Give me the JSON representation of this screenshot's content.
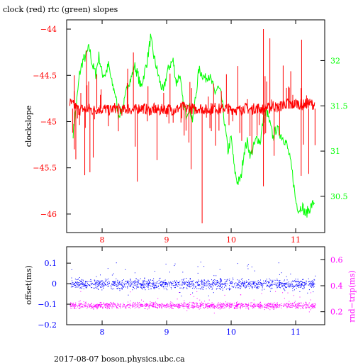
{
  "header": {
    "title": "clock (red) rtc (green) slopes"
  },
  "footer": {
    "text": "2017-08-07  boson.physics.ubc.ca"
  },
  "colors": {
    "red": "#ff0000",
    "green": "#00ff00",
    "blue": "#0000ff",
    "magenta": "#ff00ff",
    "axis": "#000000"
  },
  "chart_data": [
    {
      "type": "line",
      "xlim": [
        7.45,
        11.45
      ],
      "xticks": [
        {
          "v": 8,
          "label": "8"
        },
        {
          "v": 9,
          "label": "9"
        },
        {
          "v": 10,
          "label": "10"
        },
        {
          "v": 11,
          "label": "11"
        }
      ],
      "left_axis": {
        "label": "clockslope",
        "color": "#ff0000",
        "ylim": [
          -46.2,
          -43.9
        ],
        "ticks": [
          {
            "v": -44,
            "label": "−44"
          },
          {
            "v": -44.5,
            "label": "−44.5"
          },
          {
            "v": -45,
            "label": "−45"
          },
          {
            "v": -45.5,
            "label": "−45.5"
          },
          {
            "v": -46,
            "label": "−46"
          }
        ]
      },
      "right_axis": {
        "label": "",
        "color": "#00ff00",
        "ylim": [
          30.1,
          32.45
        ],
        "ticks": [
          {
            "v": 32,
            "label": "32"
          },
          {
            "v": 31.5,
            "label": "31.5"
          },
          {
            "v": 31,
            "label": "31"
          },
          {
            "v": 30.5,
            "label": "30.5"
          }
        ]
      },
      "series": [
        {
          "axis": "right",
          "color": "#00ff00",
          "x": [
            7.55,
            7.6,
            7.65,
            7.7,
            7.75,
            7.8,
            7.85,
            7.9,
            7.95,
            8.0,
            8.05,
            8.1,
            8.15,
            8.2,
            8.25,
            8.3,
            8.35,
            8.4,
            8.45,
            8.5,
            8.55,
            8.6,
            8.65,
            8.7,
            8.75,
            8.8,
            8.85,
            8.9,
            8.95,
            9.0,
            9.05,
            9.1,
            9.15,
            9.2,
            9.25,
            9.3,
            9.35,
            9.4,
            9.45,
            9.5,
            9.55,
            9.6,
            9.65,
            9.7,
            9.75,
            9.8,
            9.85,
            9.9,
            9.95,
            10.0,
            10.05,
            10.1,
            10.15,
            10.2,
            10.25,
            10.3,
            10.35,
            10.4,
            10.45,
            10.5,
            10.55,
            10.6,
            10.65,
            10.7,
            10.75,
            10.8,
            10.85,
            10.9,
            10.95,
            11.0,
            11.05,
            11.1,
            11.15,
            11.2,
            11.25,
            11.3
          ],
          "y": [
            31.2,
            31.5,
            31.85,
            32.0,
            32.05,
            32.15,
            31.95,
            31.85,
            32.05,
            31.85,
            31.85,
            31.95,
            31.75,
            31.65,
            31.4,
            31.45,
            31.55,
            31.75,
            31.8,
            31.95,
            31.85,
            31.7,
            31.85,
            32.0,
            32.25,
            32.05,
            31.9,
            31.75,
            31.65,
            31.85,
            31.95,
            32.0,
            31.75,
            31.85,
            31.55,
            31.4,
            31.5,
            31.35,
            31.6,
            31.9,
            31.85,
            31.8,
            31.85,
            31.75,
            31.65,
            31.7,
            31.6,
            31.3,
            31.0,
            31.15,
            30.8,
            30.65,
            30.7,
            31.0,
            31.1,
            30.95,
            31.05,
            31.15,
            31.1,
            31.35,
            31.45,
            31.3,
            31.15,
            31.25,
            31.2,
            31.15,
            31.1,
            30.95,
            30.75,
            30.45,
            30.35,
            30.4,
            30.3,
            30.35,
            30.4,
            30.45
          ]
        },
        {
          "axis": "left",
          "color": "#ff0000",
          "x": [
            7.5,
            7.55,
            7.6,
            7.65,
            7.7,
            7.75,
            7.8,
            7.85,
            7.9,
            7.95,
            8.0,
            8.05,
            8.1,
            8.15,
            8.2,
            8.25,
            8.3,
            8.35,
            8.4,
            8.45,
            8.5,
            8.55,
            8.6,
            8.65,
            8.7,
            8.75,
            8.8,
            8.85,
            8.9,
            8.95,
            9.0,
            9.05,
            9.1,
            9.15,
            9.2,
            9.25,
            9.3,
            9.35,
            9.4,
            9.45,
            9.5,
            9.55,
            9.6,
            9.65,
            9.7,
            9.75,
            9.8,
            9.85,
            9.9,
            9.95,
            10.0,
            10.05,
            10.1,
            10.15,
            10.2,
            10.25,
            10.3,
            10.35,
            10.4,
            10.45,
            10.5,
            10.55,
            10.6,
            10.65,
            10.7,
            10.75,
            10.8,
            10.85,
            10.9,
            10.95,
            11.0,
            11.05,
            11.1,
            11.15,
            11.2,
            11.25,
            11.3
          ],
          "y": [
            -44.8,
            -44.82,
            -44.85,
            -44.88,
            -44.86,
            -44.87,
            -44.86,
            -44.88,
            -44.87,
            -44.86,
            -44.87,
            -44.86,
            -44.88,
            -44.87,
            -44.85,
            -44.86,
            -44.88,
            -44.87,
            -44.86,
            -44.87,
            -44.88,
            -44.86,
            -44.85,
            -44.86,
            -44.87,
            -44.88,
            -44.86,
            -44.87,
            -44.88,
            -44.86,
            -44.87,
            -44.86,
            -44.88,
            -44.87,
            -44.85,
            -44.84,
            -44.86,
            -44.85,
            -44.86,
            -44.87,
            -44.85,
            -44.86,
            -44.87,
            -44.88,
            -44.86,
            -44.85,
            -44.86,
            -44.87,
            -44.85,
            -44.86,
            -44.87,
            -44.86,
            -44.88,
            -44.87,
            -44.85,
            -44.86,
            -44.87,
            -44.86,
            -44.85,
            -44.86,
            -44.87,
            -44.85,
            -44.86,
            -44.82,
            -44.85,
            -44.84,
            -44.82,
            -44.8,
            -44.81,
            -44.82,
            -44.8,
            -44.81,
            -44.82,
            -44.81,
            -44.8,
            -44.81,
            -44.82
          ]
        }
      ]
    },
    {
      "type": "scatter",
      "xlim": [
        7.45,
        11.45
      ],
      "xticks": [
        {
          "v": 8,
          "label": "8"
        },
        {
          "v": 9,
          "label": "9"
        },
        {
          "v": 10,
          "label": "10"
        },
        {
          "v": 11,
          "label": "11"
        }
      ],
      "left_axis": {
        "label": "offset(ms)",
        "color": "#0000ff",
        "ylim": [
          -0.2,
          0.18
        ],
        "ticks": [
          {
            "v": 0.1,
            "label": "0.1"
          },
          {
            "v": 0,
            "label": "0"
          },
          {
            "v": -0.1,
            "label": "−0.1"
          },
          {
            "v": -0.2,
            "label": "−0.2"
          }
        ]
      },
      "right_axis": {
        "label": "rnd−trip(ms)",
        "color": "#ff00ff",
        "ylim": [
          0.1,
          0.7
        ],
        "ticks": [
          {
            "v": 0.6,
            "label": "0.6"
          },
          {
            "v": 0.4,
            "label": "0.4"
          },
          {
            "v": 0.2,
            "label": "0.2"
          }
        ]
      },
      "series": [
        {
          "axis": "left",
          "color": "#0000ff",
          "x_range": [
            7.5,
            11.3
          ],
          "center": 0.0,
          "spread": 0.012
        },
        {
          "axis": "right",
          "color": "#ff00ff",
          "x_range": [
            7.5,
            11.3
          ],
          "center": 0.25,
          "spread": 0.012
        }
      ]
    }
  ]
}
